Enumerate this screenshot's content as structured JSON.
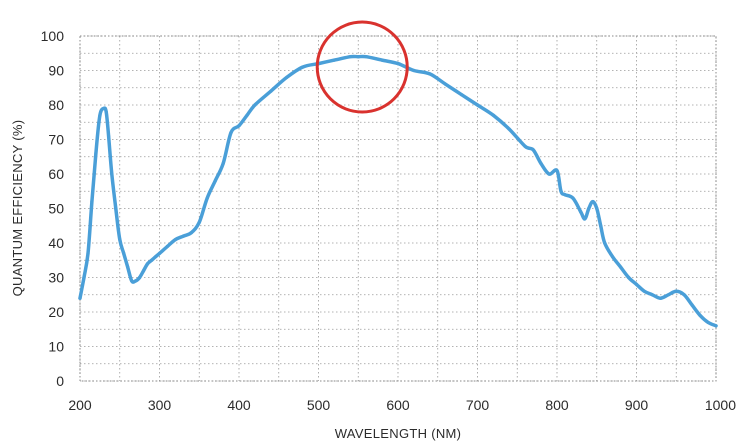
{
  "chart_data": {
    "type": "line",
    "title": "",
    "xlabel": "WAVELENGTH (NM)",
    "ylabel": "QUANTUM EFFICIENCY (%)",
    "xlim": [
      200,
      1000
    ],
    "ylim": [
      0,
      100
    ],
    "x_ticks": [
      200,
      300,
      400,
      500,
      600,
      700,
      800,
      900,
      1000
    ],
    "y_ticks": [
      0,
      10,
      20,
      30,
      40,
      50,
      60,
      70,
      80,
      90,
      100
    ],
    "grid": true,
    "colors": {
      "line": "#4a9fd8",
      "highlight": "#d9322e"
    },
    "highlight_circle": {
      "center_x": 555,
      "center_y": 91,
      "label": ""
    },
    "series": [
      {
        "x": [
          200,
          205,
          210,
          215,
          220,
          225,
          230,
          233,
          236,
          240,
          245,
          250,
          255,
          260,
          265,
          270,
          275,
          280,
          285,
          290,
          295,
          300,
          310,
          320,
          330,
          340,
          350,
          360,
          370,
          380,
          390,
          400,
          410,
          420,
          440,
          460,
          480,
          500,
          520,
          540,
          550,
          560,
          580,
          600,
          620,
          640,
          660,
          680,
          700,
          720,
          740,
          760,
          770,
          780,
          790,
          800,
          805,
          810,
          820,
          830,
          835,
          840,
          845,
          850,
          855,
          860,
          870,
          880,
          890,
          900,
          910,
          920,
          930,
          940,
          950,
          960,
          970,
          980,
          990,
          1000
        ],
        "y": [
          24,
          30,
          37,
          52,
          66,
          77,
          79,
          78,
          71,
          60,
          50,
          41,
          37,
          33,
          29,
          29,
          30,
          32,
          34,
          35,
          36,
          37,
          39,
          41,
          42,
          43,
          46,
          53,
          58,
          63,
          72,
          74,
          77,
          80,
          84,
          88,
          91,
          92,
          93,
          94,
          94,
          94,
          93,
          92,
          90,
          89,
          86,
          83,
          80,
          77,
          73,
          68,
          67,
          63,
          60,
          61,
          55,
          54,
          53,
          49,
          47,
          50,
          52,
          50,
          45,
          40,
          36,
          33,
          30,
          28,
          26,
          25,
          24,
          25,
          26,
          25,
          22,
          19,
          17,
          16
        ]
      }
    ]
  }
}
